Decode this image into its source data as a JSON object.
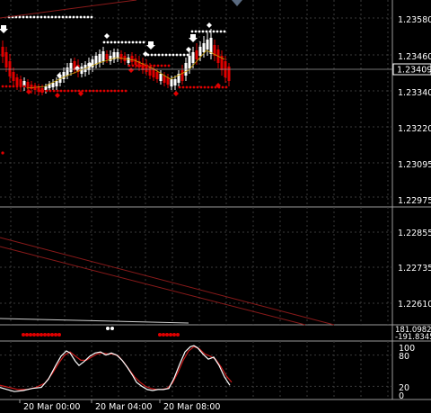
{
  "colors": {
    "background": "#000000",
    "grid": "#3a3a3a",
    "separator": "#9a9a9a",
    "scale_text": "#ffffff",
    "bull_candle": "#ffffff",
    "bear_candle": "#e00000",
    "signal_dot_white": "#ffffff",
    "signal_dot_red": "#e00000",
    "trend_line": "#8a1a1a",
    "stoch_main": "#ffffff",
    "stoch_signal": "#cc1a1a",
    "ma_line": "#c8a000",
    "current_price_marker": "#5a6a80"
  },
  "price_panel": {
    "scale_labels": [
      "1.23580",
      "1.23460",
      "1.23340",
      "1.23220",
      "1.23095",
      "1.22975"
    ],
    "current_price": "1.23409"
  },
  "trend_panel": {
    "scale_labels": [
      "1.22855",
      "1.22735",
      "1.22610"
    ]
  },
  "histogram_panel": {
    "scale_labels": [
      "181.0982",
      "-191.8345"
    ]
  },
  "stochastic_panel": {
    "levels": {
      "top": "100",
      "upper": "80",
      "lower": "20",
      "bottom": "0"
    }
  },
  "time_axis": {
    "labels": [
      "20 Mar 00:00",
      "20 Mar 04:00",
      "20 Mar 08:00"
    ]
  }
}
